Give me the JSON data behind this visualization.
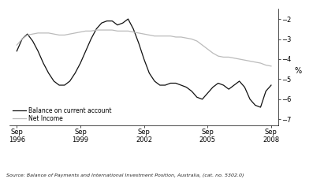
{
  "title": "",
  "ylabel": "%",
  "ylim": [
    -7.3,
    -1.5
  ],
  "yticks": [
    -7,
    -6,
    -5,
    -4,
    -3,
    -2
  ],
  "source_text": "Source: Balance of Payments and International Investment Position, Australia, (cat. no. 5302.0)",
  "xtick_labels": [
    "Sep\n1996",
    "Sep\n1999",
    "Sep\n2002",
    "Sep\n2005",
    "Sep\n2008"
  ],
  "background_color": "#ffffff",
  "line1_color": "#111111",
  "line2_color": "#bbbbbb",
  "legend_labels": [
    "Balance on current account",
    "Net Income"
  ],
  "balance_x": [
    1996.75,
    1997.0,
    1997.25,
    1997.5,
    1997.75,
    1998.0,
    1998.25,
    1998.5,
    1998.75,
    1999.0,
    1999.25,
    1999.5,
    1999.75,
    2000.0,
    2000.25,
    2000.5,
    2000.75,
    2001.0,
    2001.25,
    2001.5,
    2001.75,
    2002.0,
    2002.25,
    2002.5,
    2002.75,
    2003.0,
    2003.25,
    2003.5,
    2003.75,
    2004.0,
    2004.25,
    2004.5,
    2004.75,
    2005.0,
    2005.25,
    2005.5,
    2005.75,
    2006.0,
    2006.25,
    2006.5,
    2006.75,
    2007.0,
    2007.25,
    2007.5,
    2007.75,
    2008.0,
    2008.25,
    2008.5,
    2008.75
  ],
  "balance_y": [
    -3.6,
    -3.0,
    -2.75,
    -3.1,
    -3.6,
    -4.2,
    -4.7,
    -5.1,
    -5.3,
    -5.3,
    -5.1,
    -4.7,
    -4.2,
    -3.6,
    -3.0,
    -2.5,
    -2.2,
    -2.1,
    -2.1,
    -2.3,
    -2.2,
    -2.0,
    -2.5,
    -3.2,
    -4.0,
    -4.7,
    -5.1,
    -5.3,
    -5.3,
    -5.2,
    -5.2,
    -5.3,
    -5.4,
    -5.6,
    -5.9,
    -6.0,
    -5.7,
    -5.4,
    -5.2,
    -5.3,
    -5.5,
    -5.3,
    -5.1,
    -5.4,
    -6.0,
    -6.3,
    -6.4,
    -5.6,
    -5.3
  ],
  "netincome_x": [
    1996.75,
    1997.0,
    1997.25,
    1997.5,
    1997.75,
    1998.0,
    1998.25,
    1998.5,
    1998.75,
    1999.0,
    1999.25,
    1999.5,
    1999.75,
    2000.0,
    2000.25,
    2000.5,
    2000.75,
    2001.0,
    2001.25,
    2001.5,
    2001.75,
    2002.0,
    2002.25,
    2002.5,
    2002.75,
    2003.0,
    2003.25,
    2003.5,
    2003.75,
    2004.0,
    2004.25,
    2004.5,
    2004.75,
    2005.0,
    2005.25,
    2005.5,
    2005.75,
    2006.0,
    2006.25,
    2006.5,
    2006.75,
    2007.0,
    2007.25,
    2007.5,
    2007.75,
    2008.0,
    2008.25,
    2008.5,
    2008.75
  ],
  "netincome_y": [
    -3.3,
    -3.0,
    -2.8,
    -2.75,
    -2.7,
    -2.7,
    -2.7,
    -2.75,
    -2.8,
    -2.8,
    -2.75,
    -2.7,
    -2.65,
    -2.6,
    -2.6,
    -2.55,
    -2.55,
    -2.55,
    -2.55,
    -2.6,
    -2.6,
    -2.6,
    -2.65,
    -2.7,
    -2.75,
    -2.8,
    -2.85,
    -2.85,
    -2.85,
    -2.85,
    -2.9,
    -2.9,
    -2.95,
    -3.0,
    -3.1,
    -3.3,
    -3.5,
    -3.7,
    -3.85,
    -3.9,
    -3.9,
    -3.95,
    -4.0,
    -4.05,
    -4.1,
    -4.15,
    -4.2,
    -4.3,
    -4.35
  ]
}
